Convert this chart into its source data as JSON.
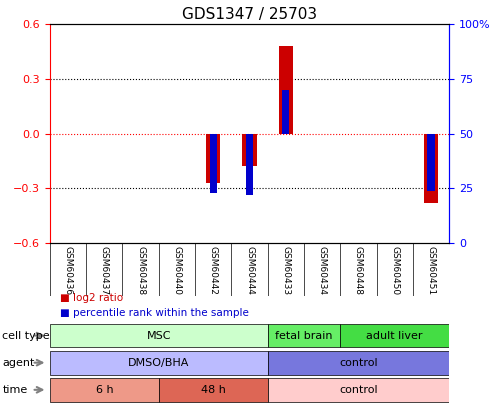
{
  "title": "GDS1347 / 25703",
  "samples": [
    "GSM60436",
    "GSM60437",
    "GSM60438",
    "GSM60440",
    "GSM60442",
    "GSM60444",
    "GSM60433",
    "GSM60434",
    "GSM60448",
    "GSM60450",
    "GSM60451"
  ],
  "log2_ratio": [
    0.0,
    0.0,
    0.0,
    0.0,
    -0.27,
    -0.18,
    0.48,
    0.0,
    0.0,
    0.0,
    -0.38
  ],
  "percentile_rank": [
    50,
    50,
    50,
    50,
    23,
    22,
    70,
    50,
    50,
    50,
    24
  ],
  "ylim_left": [
    -0.6,
    0.6
  ],
  "ylim_right": [
    0,
    100
  ],
  "yticks_left": [
    -0.6,
    -0.3,
    0.0,
    0.3,
    0.6
  ],
  "yticks_right": [
    0,
    25,
    50,
    75,
    100
  ],
  "ytick_labels_right": [
    "0",
    "25",
    "50",
    "75",
    "100%"
  ],
  "bar_color_red": "#cc0000",
  "bar_color_blue": "#0000cc",
  "dotted_line_color_red": "#cc0000",
  "dotted_line_color_black": "#000000",
  "cell_type_rows": [
    {
      "label": "MSC",
      "start": 0,
      "end": 6,
      "color": "#ccffcc",
      "border": "#00aa00"
    },
    {
      "label": "fetal brain",
      "start": 6,
      "end": 8,
      "color": "#66ee66",
      "border": "#00aa00"
    },
    {
      "label": "adult liver",
      "start": 8,
      "end": 11,
      "color": "#44dd44",
      "border": "#00aa00"
    }
  ],
  "agent_rows": [
    {
      "label": "DMSO/BHA",
      "start": 0,
      "end": 6,
      "color": "#bbbbff",
      "border": "#5555cc"
    },
    {
      "label": "control",
      "start": 6,
      "end": 11,
      "color": "#7777dd",
      "border": "#5555cc"
    }
  ],
  "time_rows": [
    {
      "label": "6 h",
      "start": 0,
      "end": 3,
      "color": "#ee9988",
      "border": "#aa4444"
    },
    {
      "label": "48 h",
      "start": 3,
      "end": 6,
      "color": "#dd6655",
      "border": "#aa4444"
    },
    {
      "label": "control",
      "start": 6,
      "end": 11,
      "color": "#ffcccc",
      "border": "#aa4444"
    }
  ],
  "row_labels": [
    "cell type",
    "agent",
    "time"
  ],
  "legend_items": [
    {
      "label": "log2 ratio",
      "color": "#cc0000"
    },
    {
      "label": "percentile rank within the sample",
      "color": "#0000cc"
    }
  ],
  "bg_color": "#ffffff",
  "plot_bg_color": "#ffffff",
  "grid_color": "#888888"
}
